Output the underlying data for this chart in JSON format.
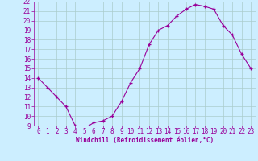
{
  "x": [
    0,
    1,
    2,
    3,
    4,
    5,
    6,
    7,
    8,
    9,
    10,
    11,
    12,
    13,
    14,
    15,
    16,
    17,
    18,
    19,
    20,
    21,
    22,
    23
  ],
  "y": [
    14,
    13,
    12,
    11,
    9,
    8.7,
    9.3,
    9.5,
    10,
    11.5,
    13.5,
    15,
    17.5,
    19,
    19.5,
    20.5,
    21.2,
    21.7,
    21.5,
    21.2,
    19.5,
    18.5,
    16.5,
    15
  ],
  "line_color": "#990099",
  "marker": "+",
  "background_color": "#cceeff",
  "grid_color": "#aacccc",
  "xlabel": "Windchill (Refroidissement éolien,°C)",
  "xlabel_color": "#990099",
  "tick_color": "#990099",
  "ylim": [
    9,
    22
  ],
  "xlim": [
    -0.5,
    23.5
  ],
  "yticks": [
    9,
    10,
    11,
    12,
    13,
    14,
    15,
    16,
    17,
    18,
    19,
    20,
    21,
    22
  ],
  "xticks": [
    0,
    1,
    2,
    3,
    4,
    5,
    6,
    7,
    8,
    9,
    10,
    11,
    12,
    13,
    14,
    15,
    16,
    17,
    18,
    19,
    20,
    21,
    22,
    23
  ],
  "tick_fontsize": 5.5,
  "xlabel_fontsize": 5.5
}
